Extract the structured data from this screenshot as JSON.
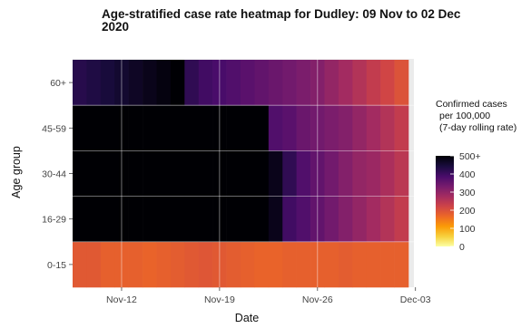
{
  "chart_data": {
    "type": "heatmap",
    "title": "Age-stratified case rate heatmap for Dudley: 09 Nov to 02 Dec",
    "title_line2": "2020",
    "xlabel": "Date",
    "ylabel": "Age group",
    "x": [
      "2020-11-09",
      "2020-11-10",
      "2020-11-11",
      "2020-11-12",
      "2020-11-13",
      "2020-11-14",
      "2020-11-15",
      "2020-11-16",
      "2020-11-17",
      "2020-11-18",
      "2020-11-19",
      "2020-11-20",
      "2020-11-21",
      "2020-11-22",
      "2020-11-23",
      "2020-11-24",
      "2020-11-25",
      "2020-11-26",
      "2020-11-27",
      "2020-11-28",
      "2020-11-29",
      "2020-11-30",
      "2020-12-01",
      "2020-12-02"
    ],
    "x_ticks": [
      {
        "date": "2020-11-12",
        "label": "Nov-12"
      },
      {
        "date": "2020-11-19",
        "label": "Nov-19"
      },
      {
        "date": "2020-11-26",
        "label": "Nov-26"
      },
      {
        "date": "2020-12-03",
        "label": "Dec-03"
      }
    ],
    "y": [
      "0-15",
      "16-29",
      "30-44",
      "45-59",
      "60+"
    ],
    "values": {
      "60+": [
        430,
        440,
        450,
        460,
        470,
        480,
        490,
        500,
        420,
        400,
        390,
        380,
        370,
        360,
        350,
        340,
        330,
        320,
        300,
        280,
        260,
        240,
        220,
        200
      ],
      "45-59": [
        520,
        530,
        540,
        540,
        540,
        530,
        530,
        530,
        530,
        520,
        520,
        520,
        520,
        520,
        380,
        370,
        350,
        340,
        330,
        320,
        300,
        280,
        260,
        240
      ],
      "30-44": [
        530,
        530,
        540,
        540,
        540,
        530,
        530,
        530,
        530,
        520,
        520,
        520,
        520,
        520,
        480,
        420,
        380,
        360,
        340,
        320,
        300,
        290,
        270,
        250
      ],
      "16-29": [
        520,
        520,
        530,
        530,
        530,
        530,
        520,
        520,
        520,
        510,
        510,
        510,
        510,
        510,
        480,
        400,
        380,
        360,
        340,
        320,
        300,
        280,
        260,
        240
      ],
      "0-15": [
        190,
        190,
        180,
        180,
        180,
        175,
        180,
        185,
        190,
        195,
        190,
        185,
        180,
        175,
        175,
        180,
        180,
        180,
        180,
        185,
        180,
        180,
        180,
        180
      ]
    },
    "colorbar": {
      "title": [
        "Confirmed cases",
        "per 100,000",
        "(7-day rolling rate)"
      ],
      "range": [
        0,
        500
      ],
      "ticks": [
        {
          "value": 500,
          "label": "500+"
        },
        {
          "value": 400,
          "label": "400"
        },
        {
          "value": 300,
          "label": "300"
        },
        {
          "value": 200,
          "label": "200"
        },
        {
          "value": 100,
          "label": "100"
        },
        {
          "value": 0,
          "label": "0"
        }
      ],
      "colormap": "inferno",
      "stops": [
        "#fcffa4",
        "#f7d13d",
        "#fb9b06",
        "#ed6925",
        "#cf4446",
        "#a52c60",
        "#781c6d",
        "#4a0c6b",
        "#1b0c41",
        "#000004"
      ]
    },
    "grid": true,
    "legend_position": "right"
  }
}
